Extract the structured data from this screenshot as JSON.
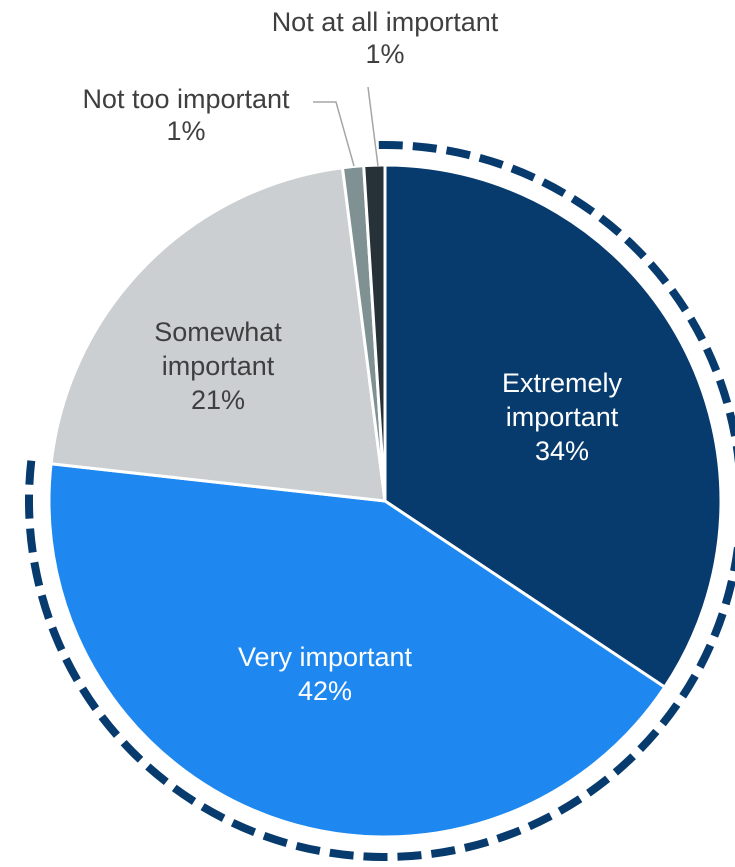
{
  "chart_data": {
    "type": "pie",
    "title": "",
    "slices": [
      {
        "label_lines": [
          "Extremely",
          "important"
        ],
        "value": 34,
        "value_label": "34%",
        "color": "#073b6e",
        "label_color": "#ffffff"
      },
      {
        "label_lines": [
          "Very important"
        ],
        "value": 42,
        "value_label": "42%",
        "color": "#1e88f0",
        "label_color": "#ffffff"
      },
      {
        "label_lines": [
          "Somewhat",
          "important"
        ],
        "value": 21,
        "value_label": "21%",
        "color": "#cbcfd1",
        "label_color": "#3f3f3f"
      },
      {
        "label_lines": [
          "Not too important"
        ],
        "value": 1,
        "value_label": "1%",
        "color": "#7f9193",
        "label_color": "#3f3f3f"
      },
      {
        "label_lines": [
          "Not at all important"
        ],
        "value": 1,
        "value_label": "1%",
        "color": "#263238",
        "label_color": "#3f3f3f"
      }
    ],
    "highlight_arc": {
      "slices": [
        "Extremely important",
        "Very important"
      ],
      "color": "#073b6e",
      "style": "dashed"
    }
  }
}
